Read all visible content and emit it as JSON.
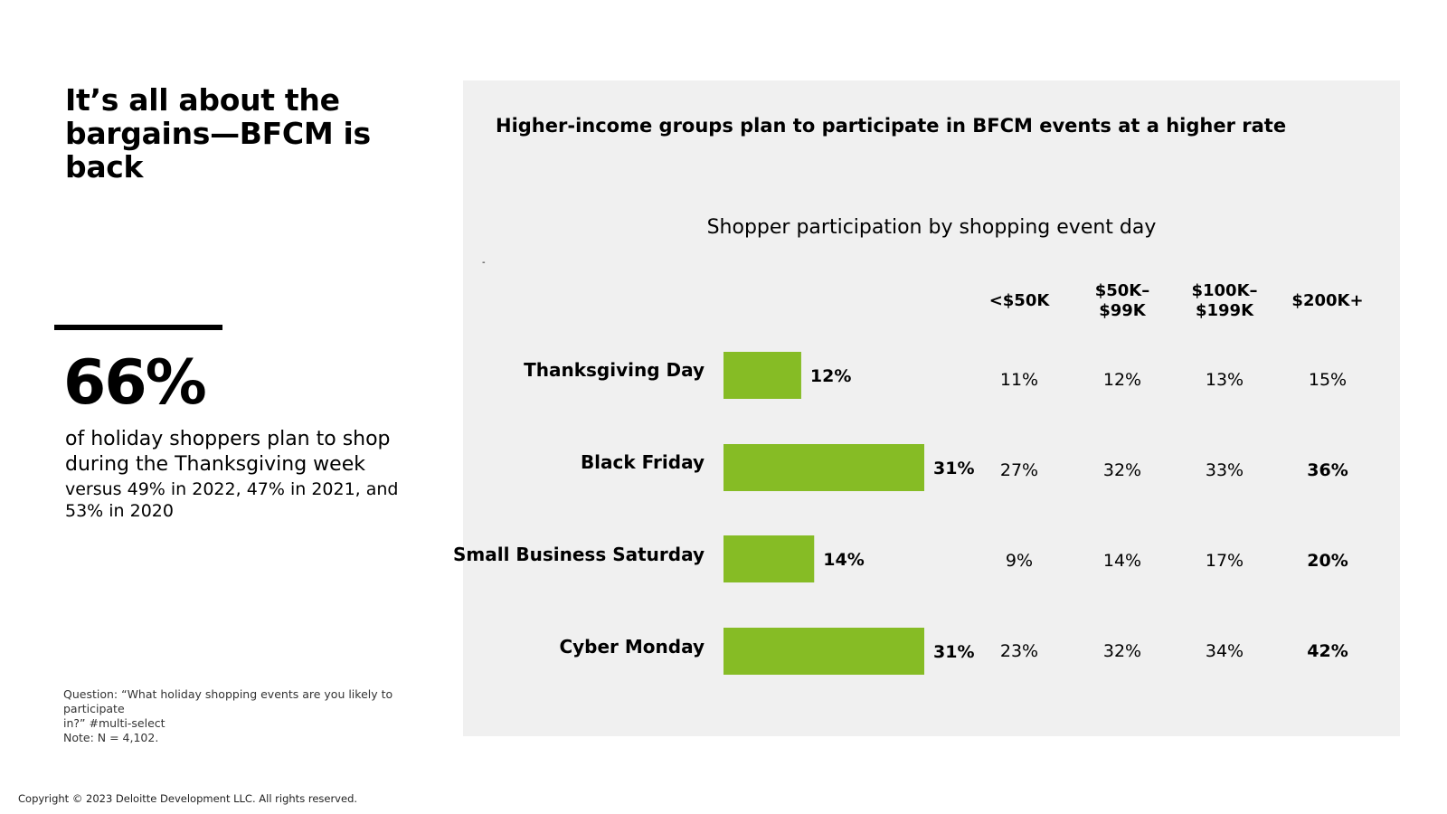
{
  "left": {
    "title_line1": "It’s all about the",
    "title_line2": "bargains—BFCM is back",
    "big_stat": "66%",
    "stat_line1": "of holiday shoppers plan to shop",
    "stat_line2": "during the Thanksgiving week",
    "sub_line1": "versus 49% in 2022, 47% in 2021, and",
    "sub_line2": "53% in 2020",
    "footnote_line1": "Question: “What holiday shopping events are you likely to participate",
    "footnote_line2": "in?” #multi-select",
    "footnote_line3": "Note: N = 4,102."
  },
  "copyright": "Copyright © 2023 Deloitte Development LLC. All rights reserved.",
  "panel": {
    "title": "Higher-income groups plan to participate in BFCM events at a higher rate",
    "tiny_mark": "-"
  },
  "colors": {
    "bar": "#86bc25",
    "panel_bg": "#f0f0f0"
  },
  "chart_data": {
    "type": "bar",
    "orientation": "horizontal",
    "title": "Shopper participation by shopping event day",
    "categories": [
      "Thanksgiving Day",
      "Black Friday",
      "Small Business Saturday",
      "Cyber Monday"
    ],
    "values": [
      12,
      31,
      14,
      31
    ],
    "value_labels": [
      "12%",
      "31%",
      "14%",
      "31%"
    ],
    "xlim": [
      0,
      31
    ],
    "grid": false,
    "income_table": {
      "headers": [
        {
          "line1": "<$50K",
          "line2": ""
        },
        {
          "line1": "$50K–",
          "line2": "$99K"
        },
        {
          "line1": "$100K–",
          "line2": "$199K"
        },
        {
          "line1": "$200K+",
          "line2": ""
        }
      ],
      "rows": [
        [
          "11%",
          "12%",
          "13%",
          "15%"
        ],
        [
          "27%",
          "32%",
          "33%",
          "36%"
        ],
        [
          "9%",
          "14%",
          "17%",
          "20%"
        ],
        [
          "23%",
          "32%",
          "34%",
          "42%"
        ]
      ],
      "bold_last_column_rows": [
        1,
        2,
        3
      ]
    }
  }
}
